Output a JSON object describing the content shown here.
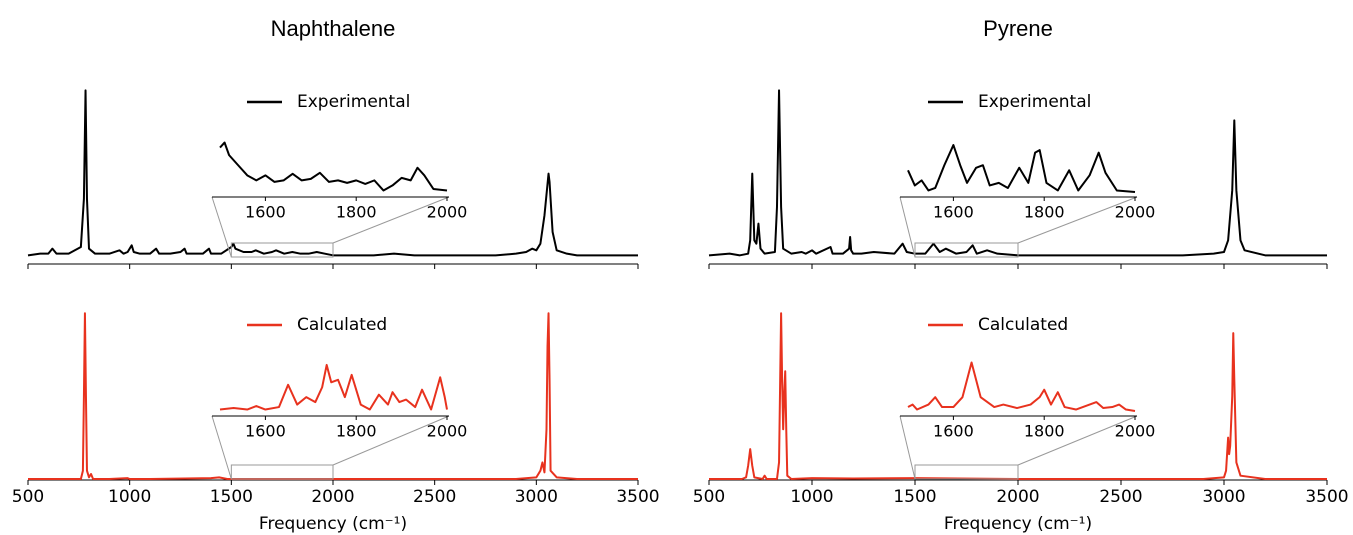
{
  "chart_data": [
    {
      "type": "line",
      "title": "Naphthalene",
      "xlabel": "Frequency (cm⁻¹)",
      "xlim": [
        500,
        3500
      ],
      "xticks": [
        500,
        1000,
        1500,
        2000,
        2500,
        3000,
        3500
      ],
      "panels": [
        {
          "ylim": [
            0,
            1.05
          ],
          "series": [
            {
              "name": "Experimental",
              "color": "#000000",
              "x": [
                500,
                560,
                600,
                620,
                640,
                700,
                760,
                775,
                783,
                790,
                800,
                830,
                900,
                950,
                970,
                990,
                1010,
                1020,
                1050,
                1100,
                1130,
                1145,
                1200,
                1250,
                1270,
                1280,
                1300,
                1360,
                1390,
                1400,
                1450,
                1500,
                1510,
                1520,
                1560,
                1600,
                1620,
                1660,
                1700,
                1720,
                1760,
                1800,
                1840,
                1880,
                1920,
                1960,
                2000,
                2100,
                2200,
                2300,
                2400,
                2500,
                2600,
                2700,
                2800,
                2900,
                2950,
                2980,
                3000,
                3020,
                3040,
                3060,
                3065,
                3080,
                3100,
                3150,
                3200,
                3300,
                3400,
                3500
              ],
              "values": [
                0.01,
                0.02,
                0.02,
                0.05,
                0.02,
                0.02,
                0.06,
                0.35,
                1.0,
                0.35,
                0.05,
                0.02,
                0.02,
                0.04,
                0.02,
                0.03,
                0.07,
                0.03,
                0.02,
                0.02,
                0.05,
                0.02,
                0.02,
                0.03,
                0.05,
                0.02,
                0.02,
                0.02,
                0.05,
                0.02,
                0.02,
                0.06,
                0.08,
                0.05,
                0.03,
                0.03,
                0.04,
                0.02,
                0.03,
                0.04,
                0.02,
                0.03,
                0.02,
                0.02,
                0.03,
                0.02,
                0.01,
                0.01,
                0.01,
                0.02,
                0.01,
                0.01,
                0.01,
                0.01,
                0.01,
                0.02,
                0.03,
                0.05,
                0.04,
                0.08,
                0.25,
                0.5,
                0.45,
                0.15,
                0.04,
                0.02,
                0.01,
                0.01,
                0.01,
                0.01
              ]
            }
          ],
          "inset": {
            "xlim": [
              1500,
              2000
            ],
            "ylim": [
              0,
              1.05
            ],
            "xticks": [
              1600,
              1800,
              2000
            ],
            "x": [
              1500,
              1510,
              1520,
              1540,
              1560,
              1580,
              1600,
              1620,
              1640,
              1660,
              1680,
              1700,
              1720,
              1740,
              1760,
              1780,
              1800,
              1820,
              1840,
              1860,
              1880,
              1900,
              1920,
              1935,
              1950,
              1970,
              2000
            ],
            "values": [
              0.9,
              1.0,
              0.75,
              0.55,
              0.35,
              0.25,
              0.35,
              0.22,
              0.25,
              0.38,
              0.25,
              0.28,
              0.4,
              0.22,
              0.25,
              0.2,
              0.25,
              0.18,
              0.25,
              0.05,
              0.15,
              0.3,
              0.25,
              0.5,
              0.35,
              0.08,
              0.05
            ]
          }
        },
        {
          "ylim": [
            0,
            1.05
          ],
          "series": [
            {
              "name": "Calculated",
              "color": "#e8321e",
              "x": [
                500,
                700,
                760,
                770,
                775,
                780,
                785,
                790,
                800,
                810,
                820,
                900,
                990,
                1000,
                1100,
                1400,
                1440,
                1480,
                1500,
                1600,
                2000,
                2500,
                2900,
                3000,
                3020,
                3030,
                3040,
                3050,
                3055,
                3060,
                3065,
                3070,
                3100,
                3200,
                3500
              ],
              "values": [
                0,
                0,
                0,
                0.05,
                0.5,
                1.0,
                0.5,
                0.05,
                0.01,
                0.03,
                0,
                0,
                0.005,
                0,
                0,
                0.005,
                0.01,
                0,
                0,
                0,
                0,
                0,
                0,
                0.01,
                0.05,
                0.1,
                0.04,
                0.3,
                0.8,
                1.0,
                0.6,
                0.05,
                0.01,
                0,
                0
              ]
            }
          ],
          "inset": {
            "xlim": [
              1500,
              2000
            ],
            "ylim": [
              0,
              1.05
            ],
            "xticks": [
              1600,
              1800,
              2000
            ],
            "x": [
              1500,
              1530,
              1560,
              1580,
              1600,
              1630,
              1650,
              1670,
              1690,
              1710,
              1725,
              1735,
              1745,
              1760,
              1775,
              1790,
              1810,
              1830,
              1850,
              1870,
              1880,
              1895,
              1910,
              1930,
              1945,
              1965,
              1985,
              1995,
              2000
            ],
            "values": [
              0.05,
              0.08,
              0.05,
              0.12,
              0.05,
              0.1,
              0.55,
              0.15,
              0.3,
              0.2,
              0.5,
              0.95,
              0.6,
              0.65,
              0.3,
              0.75,
              0.15,
              0.05,
              0.35,
              0.15,
              0.4,
              0.2,
              0.25,
              0.1,
              0.45,
              0.05,
              0.7,
              0.3,
              0.05
            ]
          }
        }
      ]
    },
    {
      "type": "line",
      "title": "Pyrene",
      "xlabel": "Frequency (cm⁻¹)",
      "xlim": [
        500,
        3500
      ],
      "xticks": [
        500,
        1000,
        1500,
        2000,
        2500,
        3000,
        3500
      ],
      "panels": [
        {
          "ylim": [
            0,
            1.05
          ],
          "series": [
            {
              "name": "Experimental",
              "color": "#000000",
              "x": [
                500,
                600,
                650,
                690,
                700,
                710,
                720,
                730,
                740,
                750,
                770,
                820,
                830,
                840,
                850,
                860,
                900,
                950,
                970,
                1000,
                1020,
                1090,
                1100,
                1150,
                1180,
                1185,
                1190,
                1200,
                1240,
                1300,
                1400,
                1440,
                1460,
                1500,
                1550,
                1590,
                1620,
                1650,
                1700,
                1750,
                1780,
                1800,
                1850,
                1900,
                2000,
                2200,
                2500,
                2800,
                2950,
                3000,
                3020,
                3040,
                3050,
                3060,
                3080,
                3100,
                3200,
                3500
              ],
              "values": [
                0.01,
                0.02,
                0.01,
                0.02,
                0.1,
                0.5,
                0.1,
                0.08,
                0.2,
                0.05,
                0.02,
                0.03,
                0.3,
                1.0,
                0.3,
                0.05,
                0.02,
                0.03,
                0.02,
                0.04,
                0.02,
                0.06,
                0.02,
                0.02,
                0.05,
                0.12,
                0.04,
                0.02,
                0.02,
                0.03,
                0.02,
                0.08,
                0.03,
                0.02,
                0.02,
                0.08,
                0.03,
                0.05,
                0.02,
                0.03,
                0.07,
                0.02,
                0.04,
                0.02,
                0.01,
                0.01,
                0.01,
                0.01,
                0.02,
                0.03,
                0.1,
                0.4,
                0.82,
                0.4,
                0.1,
                0.04,
                0.01,
                0.01
              ]
            }
          ],
          "inset": {
            "xlim": [
              1500,
              2000
            ],
            "ylim": [
              0,
              1.05
            ],
            "xticks": [
              1600,
              1800,
              2000
            ],
            "x": [
              1500,
              1515,
              1530,
              1545,
              1560,
              1580,
              1600,
              1615,
              1630,
              1650,
              1665,
              1680,
              1700,
              1720,
              1745,
              1765,
              1780,
              1790,
              1805,
              1830,
              1855,
              1875,
              1900,
              1920,
              1935,
              1960,
              2000
            ],
            "values": [
              0.45,
              0.15,
              0.25,
              0.05,
              0.1,
              0.55,
              0.95,
              0.55,
              0.2,
              0.5,
              0.55,
              0.15,
              0.2,
              0.1,
              0.5,
              0.2,
              0.8,
              0.85,
              0.2,
              0.05,
              0.45,
              0.05,
              0.35,
              0.8,
              0.4,
              0.05,
              0.02
            ]
          }
        },
        {
          "ylim": [
            0,
            1.05
          ],
          "series": [
            {
              "name": "Calculated",
              "color": "#e8321e",
              "x": [
                500,
                660,
                680,
                690,
                700,
                710,
                720,
                760,
                770,
                780,
                830,
                840,
                850,
                855,
                860,
                865,
                870,
                875,
                880,
                900,
                1000,
                1200,
                1500,
                2000,
                2500,
                2900,
                3000,
                3010,
                3020,
                3025,
                3030,
                3040,
                3045,
                3050,
                3060,
                3080,
                3200,
                3500
              ],
              "values": [
                0,
                0,
                0.01,
                0.08,
                0.18,
                0.08,
                0.01,
                0,
                0.02,
                0,
                0,
                0.1,
                1.0,
                0.6,
                0.3,
                0.5,
                0.65,
                0.3,
                0.02,
                0,
                0.005,
                0.003,
                0.005,
                0,
                0,
                0,
                0.01,
                0.05,
                0.25,
                0.15,
                0.2,
                0.5,
                0.88,
                0.6,
                0.1,
                0.02,
                0,
                0
              ]
            }
          ],
          "inset": {
            "xlim": [
              1500,
              2000
            ],
            "ylim": [
              0,
              1.05
            ],
            "xticks": [
              1600,
              1800,
              2000
            ],
            "x": [
              1500,
              1510,
              1520,
              1545,
              1560,
              1575,
              1600,
              1620,
              1640,
              1660,
              1690,
              1710,
              1740,
              1770,
              1790,
              1800,
              1815,
              1830,
              1845,
              1870,
              1900,
              1915,
              1930,
              1950,
              1965,
              1980,
              2000
            ],
            "values": [
              0.1,
              0.15,
              0.05,
              0.15,
              0.3,
              0.1,
              0.1,
              0.3,
              1.0,
              0.3,
              0.1,
              0.15,
              0.08,
              0.15,
              0.3,
              0.45,
              0.15,
              0.4,
              0.1,
              0.05,
              0.15,
              0.2,
              0.08,
              0.1,
              0.15,
              0.05,
              0.02
            ]
          }
        }
      ]
    }
  ]
}
